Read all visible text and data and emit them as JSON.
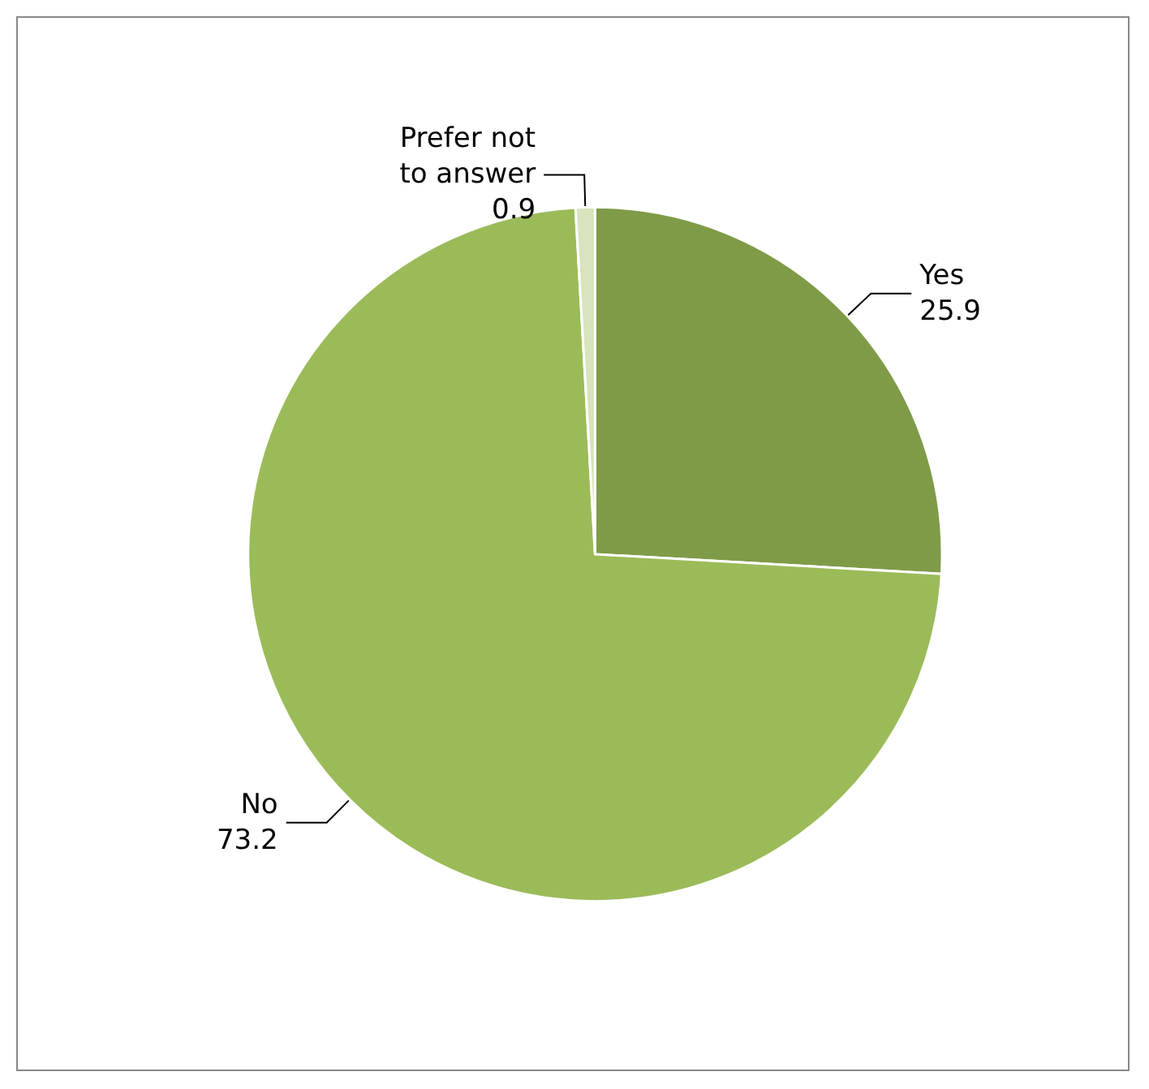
{
  "chart_data": {
    "type": "pie",
    "categories": [
      "Yes",
      "No",
      "Prefer not\nto answer"
    ],
    "values": [
      25.9,
      73.2,
      0.9
    ],
    "colors": [
      "#7f9b48",
      "#9bbb59",
      "#d7e4bd"
    ],
    "data_labels": true,
    "legend": false
  }
}
